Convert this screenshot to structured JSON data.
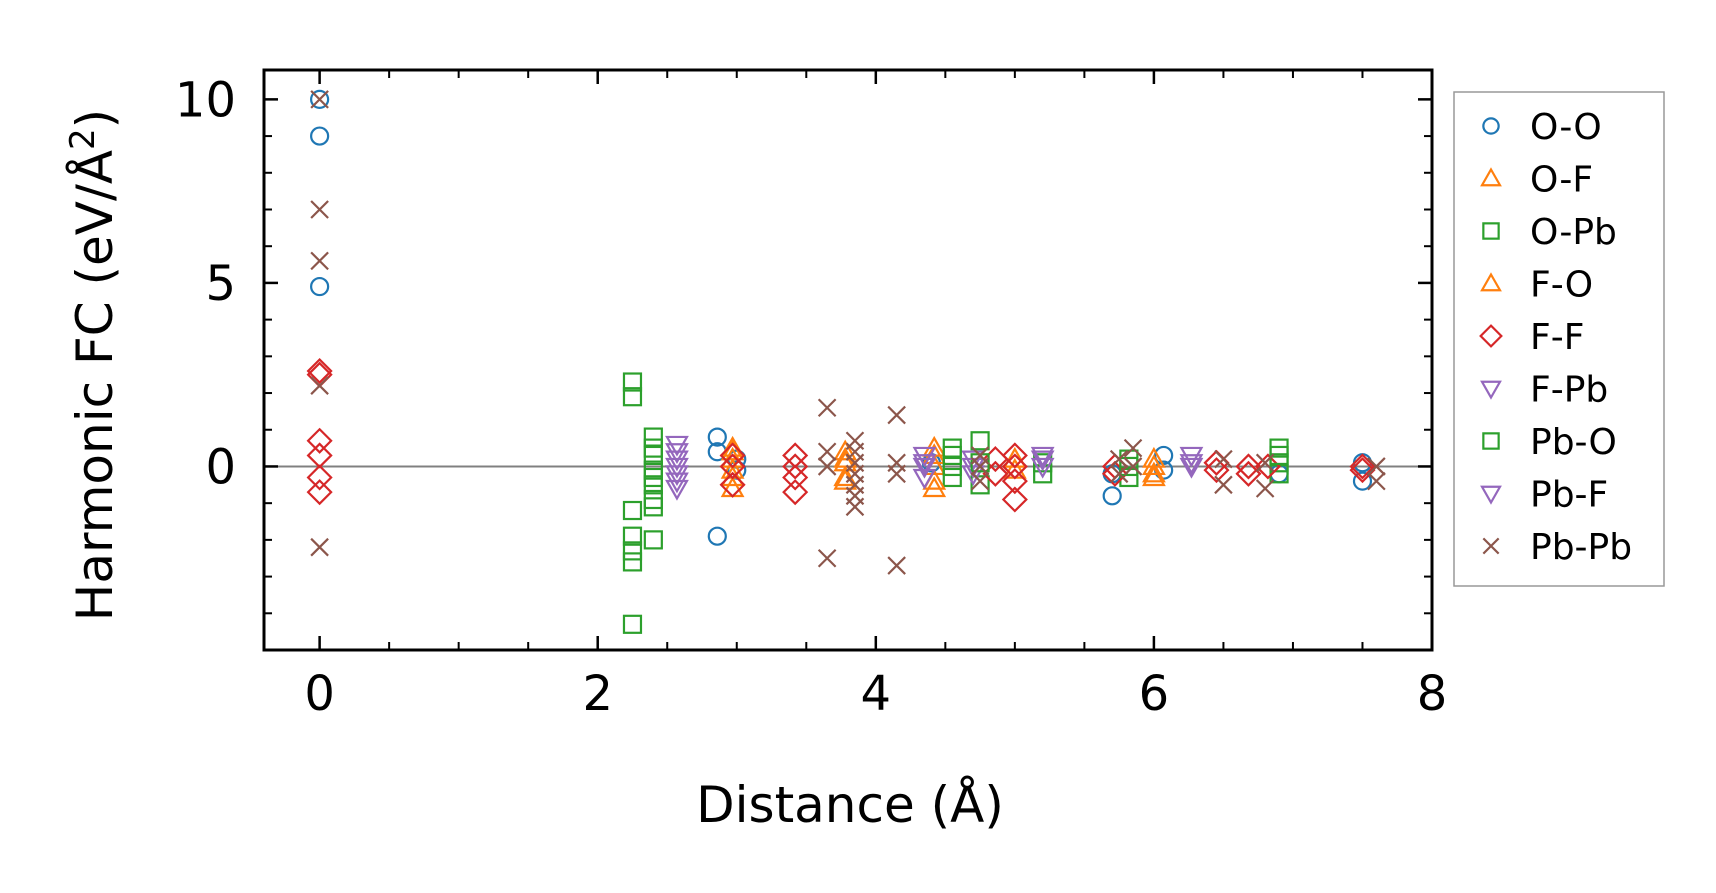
{
  "chart_data": {
    "type": "scatter",
    "title": "",
    "xlabel": "Distance (Å)",
    "ylabel_main": "Harmonic FC (eV/Å",
    "ylabel_sup": "2",
    "ylabel_close": ")",
    "xlim": [
      -0.4,
      8.0
    ],
    "ylim": [
      -5.0,
      10.8
    ],
    "xticks": [
      0,
      2,
      4,
      6,
      8
    ],
    "yticks": [
      0,
      5,
      10
    ],
    "xtick_labels": [
      "0",
      "2",
      "4",
      "6",
      "8"
    ],
    "ytick_labels": [
      "0",
      "5",
      "10"
    ],
    "xminor_step": 0.5,
    "yminor_step": 1,
    "zero_line": true,
    "legend_position": "right",
    "series": [
      {
        "name": "O-O",
        "marker": "circle",
        "color": "#1f77b4",
        "points": [
          [
            0,
            10.0
          ],
          [
            0,
            9.0
          ],
          [
            0,
            4.9
          ],
          [
            2.86,
            0.8
          ],
          [
            2.86,
            0.4
          ],
          [
            2.86,
            -1.9
          ],
          [
            3.0,
            0.2
          ],
          [
            3.0,
            -0.1
          ],
          [
            4.4,
            0.1
          ],
          [
            5.7,
            -0.2
          ],
          [
            5.7,
            -0.8
          ],
          [
            6.07,
            0.3
          ],
          [
            6.07,
            -0.1
          ],
          [
            6.9,
            -0.2
          ],
          [
            7.5,
            0.1
          ],
          [
            7.5,
            -0.4
          ]
        ]
      },
      {
        "name": "O-F",
        "marker": "triangle-up",
        "color": "#ff7f0e",
        "points": [
          [
            2.97,
            0.5
          ],
          [
            2.97,
            0.2
          ],
          [
            2.97,
            -0.1
          ],
          [
            2.97,
            -0.6
          ],
          [
            3.78,
            0.4
          ],
          [
            3.78,
            0.1
          ],
          [
            3.78,
            -0.3
          ],
          [
            4.42,
            0.5
          ],
          [
            4.42,
            0.0
          ],
          [
            4.42,
            -0.6
          ],
          [
            5.0,
            0.2
          ],
          [
            5.0,
            -0.1
          ],
          [
            6.0,
            0.0
          ],
          [
            6.0,
            -0.3
          ]
        ]
      },
      {
        "name": "O-Pb",
        "marker": "square",
        "color": "#2ca02c",
        "points": [
          [
            2.25,
            2.3
          ],
          [
            2.25,
            1.9
          ],
          [
            2.25,
            -1.2
          ],
          [
            2.25,
            -1.9
          ],
          [
            2.25,
            -2.3
          ],
          [
            2.25,
            -2.6
          ],
          [
            2.25,
            -4.3
          ],
          [
            2.4,
            0.8
          ],
          [
            2.4,
            0.3
          ],
          [
            2.4,
            -0.1
          ],
          [
            2.4,
            -0.5
          ],
          [
            2.4,
            -0.9
          ],
          [
            2.4,
            -1.1
          ],
          [
            2.4,
            -2.0
          ],
          [
            4.55,
            0.5
          ],
          [
            4.55,
            0.0
          ],
          [
            4.55,
            -0.3
          ],
          [
            4.75,
            0.7
          ],
          [
            4.75,
            -0.5
          ],
          [
            5.2,
            0.1
          ],
          [
            5.2,
            -0.2
          ],
          [
            5.82,
            0.2
          ],
          [
            5.82,
            -0.3
          ],
          [
            6.9,
            0.5
          ],
          [
            6.9,
            0.1
          ],
          [
            6.9,
            -0.2
          ]
        ]
      },
      {
        "name": "F-O",
        "marker": "triangle-up",
        "color": "#ff7f0e",
        "points": [
          [
            2.97,
            0.4
          ],
          [
            2.97,
            -0.3
          ],
          [
            3.78,
            0.2
          ],
          [
            3.78,
            -0.4
          ],
          [
            4.42,
            0.3
          ],
          [
            4.42,
            -0.4
          ],
          [
            6.0,
            0.2
          ],
          [
            6.0,
            -0.2
          ]
        ]
      },
      {
        "name": "F-F",
        "marker": "diamond",
        "color": "#d62728",
        "points": [
          [
            0,
            2.6
          ],
          [
            0,
            2.5
          ],
          [
            0,
            0.7
          ],
          [
            0,
            0.3
          ],
          [
            0,
            -0.3
          ],
          [
            0,
            -0.7
          ],
          [
            2.97,
            0.3
          ],
          [
            2.97,
            0.0
          ],
          [
            2.97,
            -0.5
          ],
          [
            3.42,
            0.3
          ],
          [
            3.42,
            0.0
          ],
          [
            3.42,
            -0.3
          ],
          [
            3.42,
            -0.7
          ],
          [
            4.86,
            0.2
          ],
          [
            4.86,
            -0.2
          ],
          [
            5.0,
            0.3
          ],
          [
            5.0,
            0.0
          ],
          [
            5.0,
            -0.4
          ],
          [
            5.0,
            -0.9
          ],
          [
            5.72,
            0.0
          ],
          [
            5.72,
            -0.2
          ],
          [
            6.45,
            0.1
          ],
          [
            6.45,
            -0.1
          ],
          [
            6.68,
            0.0
          ],
          [
            6.68,
            -0.2
          ],
          [
            6.82,
            0.0
          ],
          [
            7.5,
            0.0
          ],
          [
            7.5,
            -0.1
          ]
        ]
      },
      {
        "name": "F-Pb",
        "marker": "triangle-down",
        "color": "#9467bd",
        "points": [
          [
            2.57,
            0.6
          ],
          [
            2.57,
            0.2
          ],
          [
            2.57,
            -0.2
          ],
          [
            2.57,
            -0.6
          ],
          [
            4.35,
            0.3
          ],
          [
            4.35,
            0.0
          ],
          [
            4.35,
            -0.3
          ],
          [
            4.7,
            0.2
          ],
          [
            4.7,
            -0.2
          ],
          [
            5.2,
            0.3
          ],
          [
            5.2,
            0.0
          ],
          [
            6.27,
            0.3
          ],
          [
            6.27,
            0.0
          ]
        ]
      },
      {
        "name": "Pb-O",
        "marker": "square",
        "color": "#2ca02c",
        "points": [
          [
            2.4,
            0.5
          ],
          [
            2.4,
            -0.3
          ],
          [
            4.55,
            0.3
          ],
          [
            4.75,
            0.1
          ],
          [
            5.82,
            0.0
          ],
          [
            6.9,
            0.3
          ]
        ]
      },
      {
        "name": "Pb-F",
        "marker": "triangle-down",
        "color": "#9467bd",
        "points": [
          [
            2.57,
            0.4
          ],
          [
            2.57,
            0.0
          ],
          [
            2.57,
            -0.4
          ],
          [
            4.35,
            0.1
          ],
          [
            4.7,
            0.0
          ],
          [
            5.2,
            0.2
          ],
          [
            6.27,
            0.1
          ]
        ]
      },
      {
        "name": "Pb-Pb",
        "marker": "x",
        "color": "#8c564b",
        "points": [
          [
            0,
            10.0
          ],
          [
            0,
            7.0
          ],
          [
            0,
            5.6
          ],
          [
            0,
            2.2
          ],
          [
            0,
            -2.2
          ],
          [
            3.65,
            1.6
          ],
          [
            3.65,
            0.4
          ],
          [
            3.65,
            0.0
          ],
          [
            3.65,
            -2.5
          ],
          [
            3.85,
            0.7
          ],
          [
            3.85,
            0.4
          ],
          [
            3.85,
            0.1
          ],
          [
            3.85,
            -0.2
          ],
          [
            3.85,
            -0.5
          ],
          [
            3.85,
            -0.8
          ],
          [
            3.85,
            -1.1
          ],
          [
            4.15,
            1.4
          ],
          [
            4.15,
            0.1
          ],
          [
            4.15,
            -0.2
          ],
          [
            4.15,
            -2.7
          ],
          [
            4.75,
            0.3
          ],
          [
            4.75,
            0.0
          ],
          [
            4.75,
            -0.4
          ],
          [
            5.75,
            0.2
          ],
          [
            5.75,
            -0.2
          ],
          [
            5.85,
            0.5
          ],
          [
            5.85,
            0.0
          ],
          [
            6.5,
            0.2
          ],
          [
            6.5,
            -0.5
          ],
          [
            6.8,
            0.1
          ],
          [
            6.8,
            -0.6
          ],
          [
            7.6,
            0.0
          ],
          [
            7.6,
            -0.4
          ]
        ]
      }
    ]
  }
}
